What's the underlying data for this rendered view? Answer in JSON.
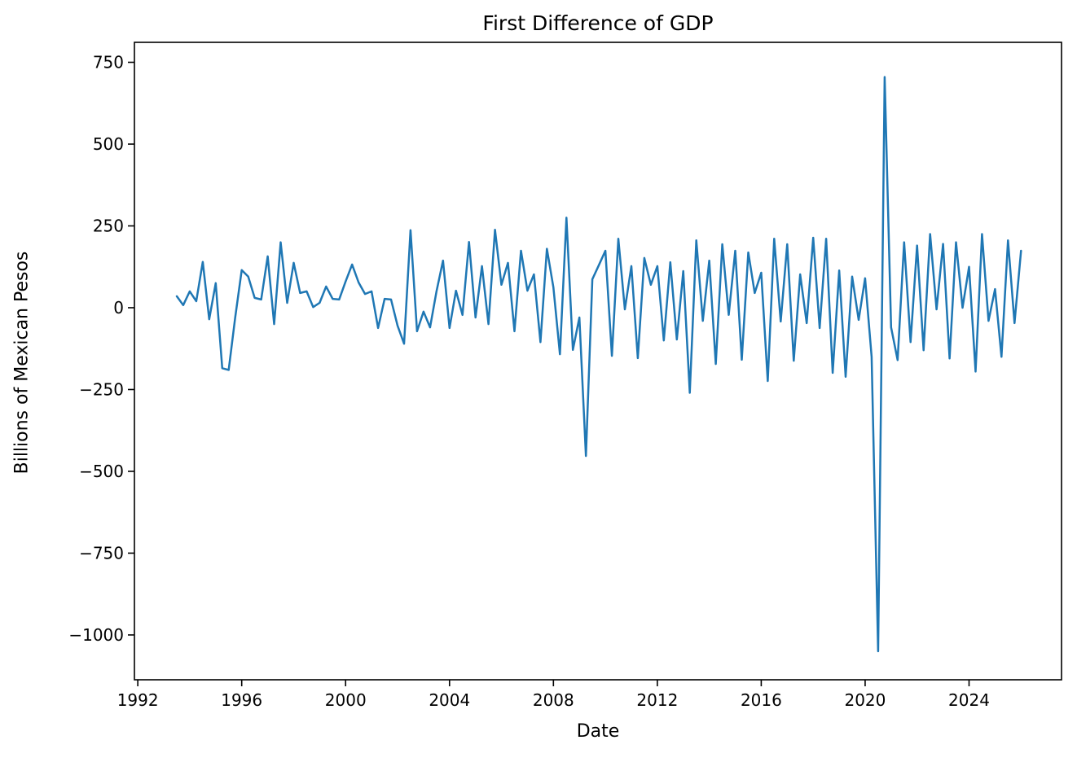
{
  "figure": {
    "background": "#ffffff"
  },
  "chart_data": {
    "type": "line",
    "title": "First Difference of GDP",
    "xlabel": "Date",
    "ylabel": "Billions of Mexican Pesos",
    "series_name": "first-difference-of-gdp",
    "line_color": "#1f77b4",
    "line_width": 2.5,
    "grid": false,
    "legend_position": "none",
    "x_unit": "decimal year, quarterly frequency",
    "x_start": 1993.5,
    "x_step": 0.25,
    "xlim": [
      1991.87,
      2027.56
    ],
    "ylim": [
      -1137,
      811
    ],
    "x_ticks": [
      1992,
      1996,
      2000,
      2004,
      2008,
      2012,
      2016,
      2020,
      2024
    ],
    "x_tick_labels": [
      "1992",
      "1996",
      "2000",
      "2004",
      "2008",
      "2012",
      "2016",
      "2020",
      "2024"
    ],
    "y_ticks": [
      750,
      500,
      250,
      0,
      -250,
      -500,
      -750,
      -1000
    ],
    "y_tick_labels": [
      "750",
      "500",
      "250",
      "0",
      "−250",
      "−500",
      "−750",
      "−1000"
    ],
    "values": [
      35,
      8,
      50,
      20,
      140,
      -35,
      75,
      -185,
      -190,
      -30,
      115,
      95,
      30,
      25,
      157,
      -50,
      200,
      15,
      137,
      45,
      50,
      2,
      15,
      65,
      27,
      25,
      80,
      132,
      77,
      42,
      50,
      -62,
      27,
      25,
      -55,
      -110,
      237,
      -72,
      -12,
      -60,
      50,
      144,
      -62,
      52,
      -22,
      201,
      -30,
      127,
      -50,
      238,
      70,
      137,
      -72,
      174,
      52,
      102,
      -105,
      180,
      62,
      -142,
      275,
      -129,
      -30,
      -453,
      87,
      130,
      174,
      -147,
      211,
      -5,
      127,
      -154,
      152,
      70,
      127,
      -100,
      139,
      -97,
      112,
      -260,
      206,
      -40,
      144,
      -172,
      194,
      -22,
      174,
      -159,
      169,
      45,
      107,
      -224,
      211,
      -42,
      194,
      -162,
      102,
      -47,
      214,
      -62,
      211,
      -199,
      114,
      -211,
      95,
      -37,
      90,
      -150,
      -1050,
      705,
      -60,
      -160,
      200,
      -105,
      190,
      -130,
      225,
      -5,
      195,
      -155,
      200,
      0,
      125,
      -195,
      225,
      -40,
      57,
      -150,
      206,
      -47,
      174
    ]
  }
}
